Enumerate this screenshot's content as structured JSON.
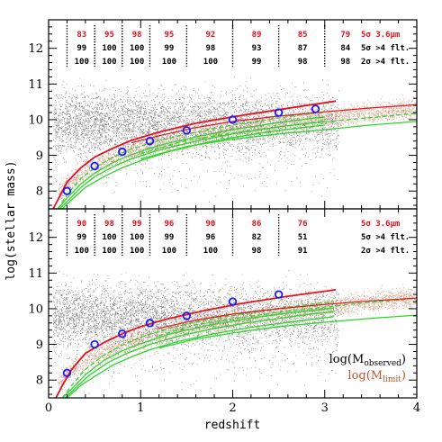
{
  "chart_data": {
    "type": "scatter",
    "xlabel": "redshift",
    "ylabel": "log(stellar mass)",
    "xlim": [
      0,
      4
    ],
    "ylim": [
      7.5,
      12.8
    ],
    "xticks": [
      "0",
      "1",
      "2",
      "3",
      "4"
    ],
    "yticks": [
      "8",
      "9",
      "10",
      "11",
      "12"
    ],
    "colors": {
      "observed": "#000000",
      "limit": "#b5562d",
      "red_line": "#e8101c",
      "green_line": "#2bd62b",
      "circle": "#1a1aff",
      "table_red": "#e8101c"
    },
    "table_bin_edges": [
      0.2,
      0.5,
      0.8,
      1.1,
      1.5,
      2.0,
      2.5,
      3.0
    ],
    "panels": [
      {
        "id": "top",
        "table": {
          "rows": [
            {
              "label": "5σ 3.6μm",
              "color": "red",
              "values": [
                "83",
                "95",
                "98",
                "95",
                "92",
                "89",
                "85",
                "79"
              ]
            },
            {
              "label": "5σ >4 flt.",
              "color": "black",
              "values": [
                "99",
                "100",
                "100",
                "99",
                "98",
                "93",
                "87",
                "84"
              ]
            },
            {
              "label": "2σ >4 flt.",
              "color": "black",
              "values": [
                "100",
                "100",
                "100",
                "100",
                "100",
                "99",
                "98",
                "98"
              ]
            }
          ]
        },
        "circles": {
          "z": [
            0.2,
            0.5,
            0.8,
            1.1,
            1.5,
            2.0,
            2.5,
            2.9
          ],
          "logM": [
            8.0,
            8.7,
            9.1,
            9.4,
            9.7,
            10.0,
            10.2,
            10.3
          ]
        },
        "red_line": {
          "z": [
            0.05,
            0.1,
            0.2,
            0.35,
            0.5,
            0.7,
            0.9,
            1.2,
            1.6,
            2.0,
            2.5,
            3.12
          ],
          "logM": [
            7.5,
            7.75,
            8.25,
            8.65,
            8.95,
            9.2,
            9.42,
            9.65,
            9.9,
            10.08,
            10.28,
            10.52
          ]
        },
        "red_line2": {
          "z": [
            0.9,
            1.2,
            1.6,
            2.0,
            2.5,
            3.0,
            3.5,
            4.0
          ],
          "logM": [
            9.35,
            9.55,
            9.78,
            9.95,
            10.1,
            10.22,
            10.33,
            10.42
          ]
        },
        "green_lines": [
          {
            "z": [
              0.1,
              0.2,
              0.35,
              0.5,
              0.7,
              0.9,
              1.2,
              1.6,
              2.0,
              2.5,
              3.0
            ],
            "logM": [
              7.5,
              7.9,
              8.35,
              8.65,
              8.95,
              9.18,
              9.42,
              9.65,
              9.85,
              10.05,
              10.22
            ],
            "dashed": true
          },
          {
            "z": [
              0.1,
              0.2,
              0.35,
              0.5,
              0.7,
              0.9,
              1.2,
              1.6,
              2.0,
              2.5,
              3.0
            ],
            "logM": [
              7.5,
              7.8,
              8.2,
              8.5,
              8.8,
              9.02,
              9.28,
              9.52,
              9.72,
              9.92,
              10.08
            ],
            "dashed": false
          },
          {
            "z": [
              0.12,
              0.2,
              0.35,
              0.5,
              0.7,
              0.9,
              1.2,
              1.6,
              2.0,
              2.5,
              3.0
            ],
            "logM": [
              7.5,
              7.7,
              8.1,
              8.4,
              8.68,
              8.9,
              9.15,
              9.4,
              9.6,
              9.8,
              9.95
            ],
            "dashed": false
          },
          {
            "z": [
              0.15,
              0.25,
              0.4,
              0.6,
              0.8,
              1.0,
              1.3,
              1.7,
              2.0,
              2.5,
              3.0
            ],
            "logM": [
              7.5,
              7.75,
              8.1,
              8.4,
              8.65,
              8.85,
              9.1,
              9.35,
              9.5,
              9.7,
              9.85
            ],
            "dashed": false
          },
          {
            "z": [
              1.0,
              1.5,
              2.0,
              2.5,
              3.0,
              3.5,
              4.0
            ],
            "logM": [
              9.05,
              9.42,
              9.62,
              9.8,
              9.94,
              10.06,
              10.18
            ],
            "dashed": true
          },
          {
            "z": [
              1.0,
              1.5,
              2.0,
              2.5,
              3.0,
              3.5,
              4.0
            ],
            "logM": [
              8.9,
              9.25,
              9.45,
              9.6,
              9.72,
              9.85,
              9.95
            ],
            "dashed": false
          }
        ]
      },
      {
        "id": "bottom",
        "table": {
          "rows": [
            {
              "label": "5σ 3.6μm",
              "color": "red",
              "values": [
                "90",
                "98",
                "99",
                "96",
                "90",
                "86",
                "76"
              ]
            },
            {
              "label": "5σ >4 flt.",
              "color": "black",
              "values": [
                "99",
                "100",
                "100",
                "99",
                "96",
                "82",
                "51"
              ]
            },
            {
              "label": "2σ >4 flt.",
              "color": "black",
              "values": [
                "100",
                "100",
                "100",
                "100",
                "100",
                "98",
                "91"
              ]
            }
          ]
        },
        "circles": {
          "z": [
            0.2,
            0.5,
            0.8,
            1.1,
            1.5,
            2.0,
            2.5
          ],
          "logM": [
            8.2,
            9.0,
            9.3,
            9.6,
            9.8,
            10.2,
            10.4
          ]
        },
        "red_line": {
          "z": [
            0.08,
            0.15,
            0.25,
            0.4,
            0.6,
            0.8,
            1.0,
            1.3,
            1.7,
            2.1,
            2.6,
            3.12
          ],
          "logM": [
            7.5,
            7.85,
            8.3,
            8.75,
            9.05,
            9.3,
            9.5,
            9.72,
            9.95,
            10.15,
            10.35,
            10.53
          ]
        },
        "red_line2": {
          "z": [
            1.2,
            1.6,
            2.0,
            2.5,
            3.0,
            3.5,
            4.0
          ],
          "logM": [
            9.45,
            9.68,
            9.85,
            10.0,
            10.12,
            10.22,
            10.3
          ]
        },
        "green_lines": [
          {
            "z": [
              0.15,
              0.25,
              0.4,
              0.6,
              0.8,
              1.0,
              1.3,
              1.7,
              2.1,
              2.6,
              3.1
            ],
            "logM": [
              7.5,
              7.85,
              8.3,
              8.7,
              8.98,
              9.2,
              9.45,
              9.68,
              9.85,
              10.05,
              10.2
            ],
            "dashed": true
          },
          {
            "z": [
              0.15,
              0.25,
              0.4,
              0.6,
              0.8,
              1.0,
              1.3,
              1.7,
              2.1,
              2.6,
              3.1
            ],
            "logM": [
              7.5,
              7.75,
              8.15,
              8.55,
              8.82,
              9.02,
              9.28,
              9.52,
              9.7,
              9.88,
              10.02
            ],
            "dashed": false
          },
          {
            "z": [
              0.18,
              0.3,
              0.45,
              0.65,
              0.85,
              1.1,
              1.4,
              1.8,
              2.2,
              2.7,
              3.1
            ],
            "logM": [
              7.5,
              7.8,
              8.15,
              8.5,
              8.75,
              9.0,
              9.22,
              9.45,
              9.62,
              9.8,
              9.92
            ],
            "dashed": false
          },
          {
            "z": [
              0.2,
              0.35,
              0.5,
              0.7,
              0.9,
              1.1,
              1.4,
              1.8,
              2.2,
              2.7,
              3.1
            ],
            "logM": [
              7.5,
              7.85,
              8.1,
              8.42,
              8.65,
              8.85,
              9.08,
              9.3,
              9.48,
              9.65,
              9.78
            ],
            "dashed": false
          },
          {
            "z": [
              1.2,
              1.6,
              2.0,
              2.5,
              3.0,
              3.5,
              4.0
            ],
            "logM": [
              9.25,
              9.55,
              9.72,
              9.9,
              10.05,
              10.18,
              10.3
            ],
            "dashed": true
          },
          {
            "z": [
              1.2,
              1.6,
              2.0,
              2.5,
              3.0,
              3.5,
              4.0
            ],
            "logM": [
              8.9,
              9.15,
              9.32,
              9.5,
              9.62,
              9.73,
              9.82
            ],
            "dashed": false
          }
        ]
      }
    ],
    "legend": {
      "observed": {
        "text": "log(M",
        "sub": "observed",
        "close": ")"
      },
      "limit": {
        "text": "log(M",
        "sub": "limit",
        "close": ")"
      }
    }
  }
}
